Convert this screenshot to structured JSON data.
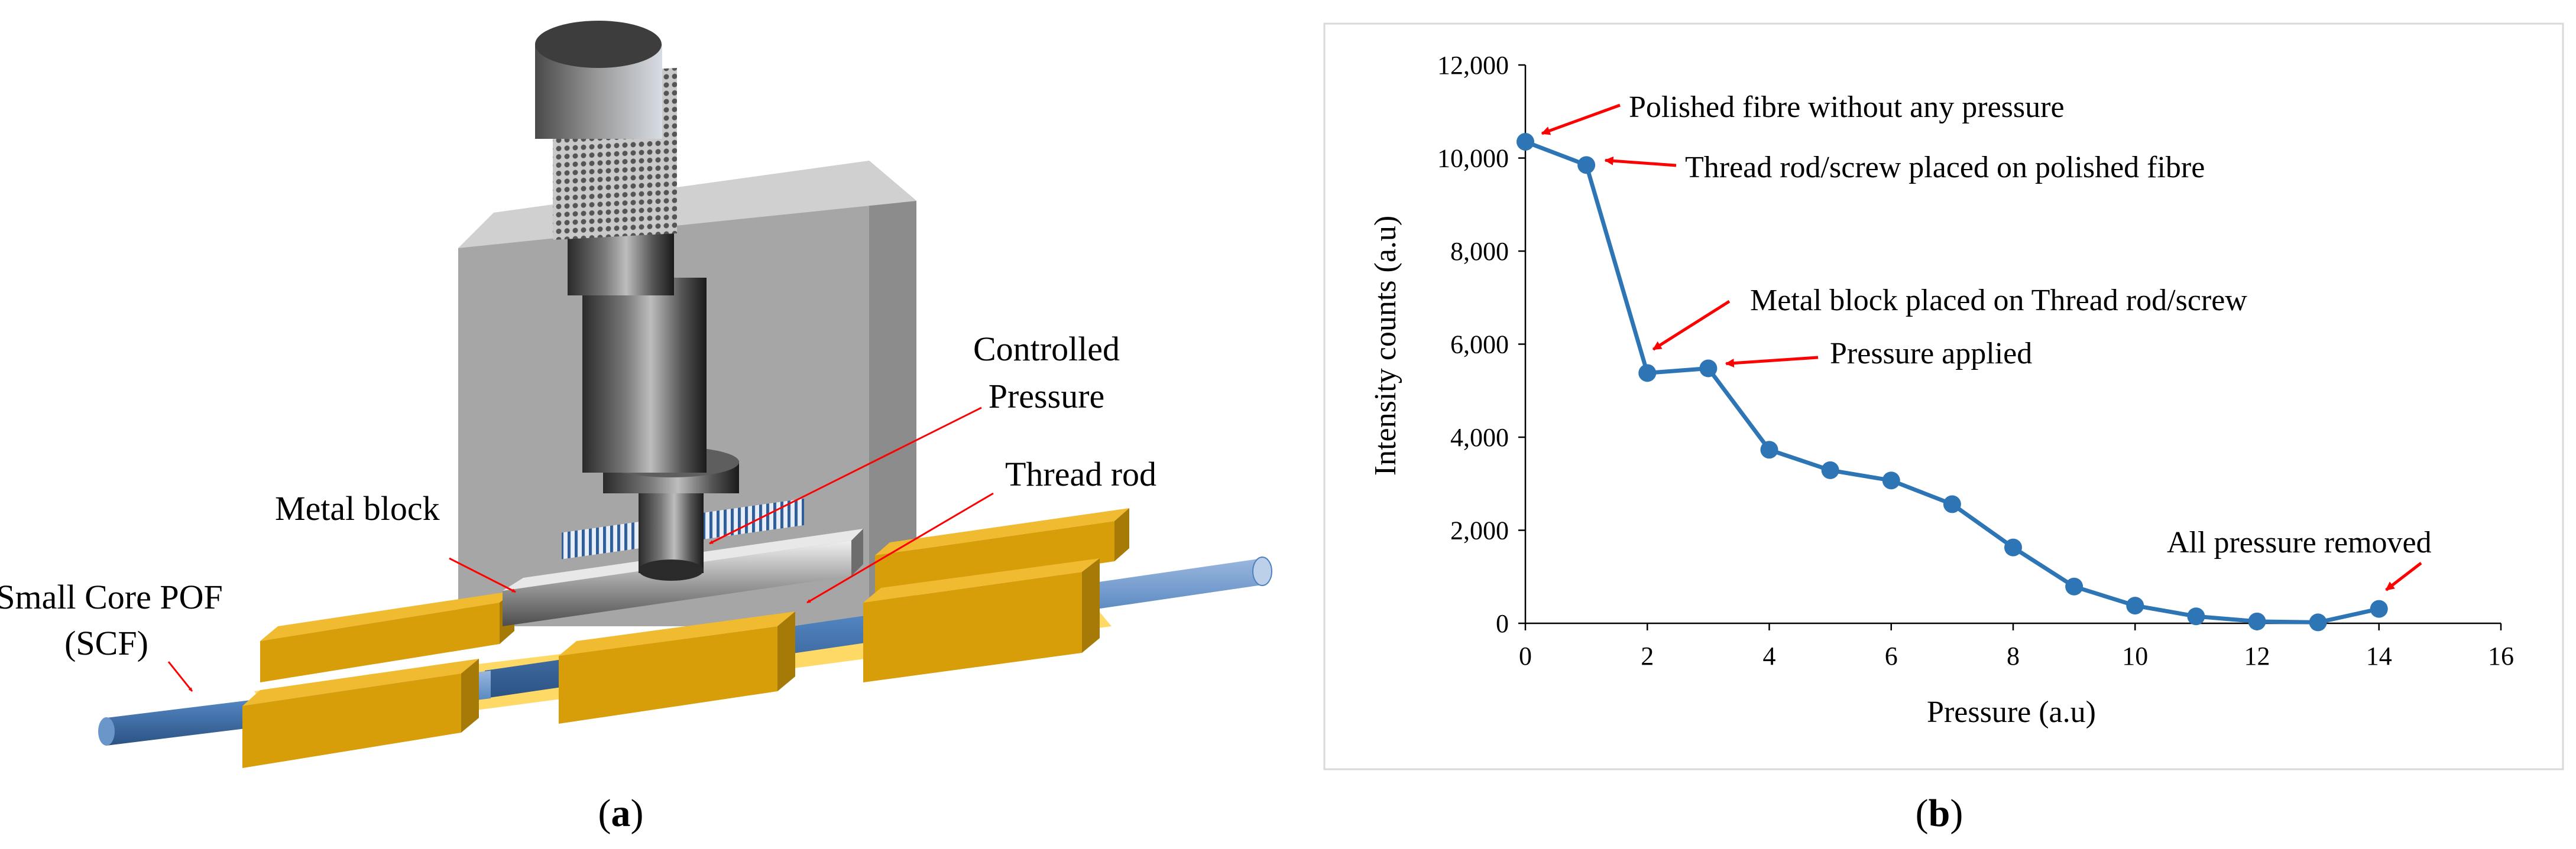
{
  "panel_a": {
    "caption_prefix": "(",
    "caption_letter": "a",
    "caption_suffix": ")",
    "labels": {
      "controlled_line1": "Controlled",
      "controlled_line2": "Pressure",
      "thread_rod": "Thread rod",
      "metal_block": "Metal block",
      "scf_line1": "Small Core POF",
      "scf_line2": "(SCF)"
    },
    "colors": {
      "fibre": "#4f81bd",
      "clamp": "#d79e0a",
      "base_plate": "#ffd966",
      "backplate": "#a6a6a6",
      "annotation_arrow": "#ff0000"
    }
  },
  "panel_b": {
    "caption_prefix": "(",
    "caption_letter": "b",
    "caption_suffix": ")"
  },
  "chart_data": {
    "type": "line",
    "title": "",
    "xlabel": "Pressure (a.u)",
    "ylabel": "Intensity counts (a.u)",
    "xlim": [
      0,
      16
    ],
    "ylim": [
      0,
      12000
    ],
    "x_ticks": [
      "0",
      "2",
      "4",
      "6",
      "8",
      "10",
      "12",
      "14",
      "16"
    ],
    "y_ticks": [
      "0",
      "2,000",
      "4,000",
      "6,000",
      "8,000",
      "10,000",
      "12,000"
    ],
    "grid": false,
    "legend": "none",
    "series": [
      {
        "color": "#2e75b6",
        "x": [
          0,
          1,
          2,
          3,
          4,
          5,
          6,
          7,
          8,
          9,
          10,
          11,
          12,
          13,
          14
        ],
        "y": [
          10350,
          9850,
          5380,
          5480,
          3730,
          3290,
          3070,
          2560,
          1630,
          790,
          380,
          150,
          40,
          20,
          310
        ]
      }
    ],
    "annotations": [
      {
        "text": "Polished fibre without any pressure",
        "point_x": 0,
        "point_y": 10350
      },
      {
        "text": "Thread rod/screw placed on polished fibre",
        "point_x": 1,
        "point_y": 9850
      },
      {
        "text": "Metal block placed on Thread rod/screw",
        "point_x": 2,
        "point_y": 5380
      },
      {
        "text": "Pressure applied",
        "point_x": 3,
        "point_y": 5480
      },
      {
        "text": "All pressure removed",
        "point_x": 14,
        "point_y": 310
      }
    ],
    "annotation_arrow_color": "#ff0000"
  }
}
